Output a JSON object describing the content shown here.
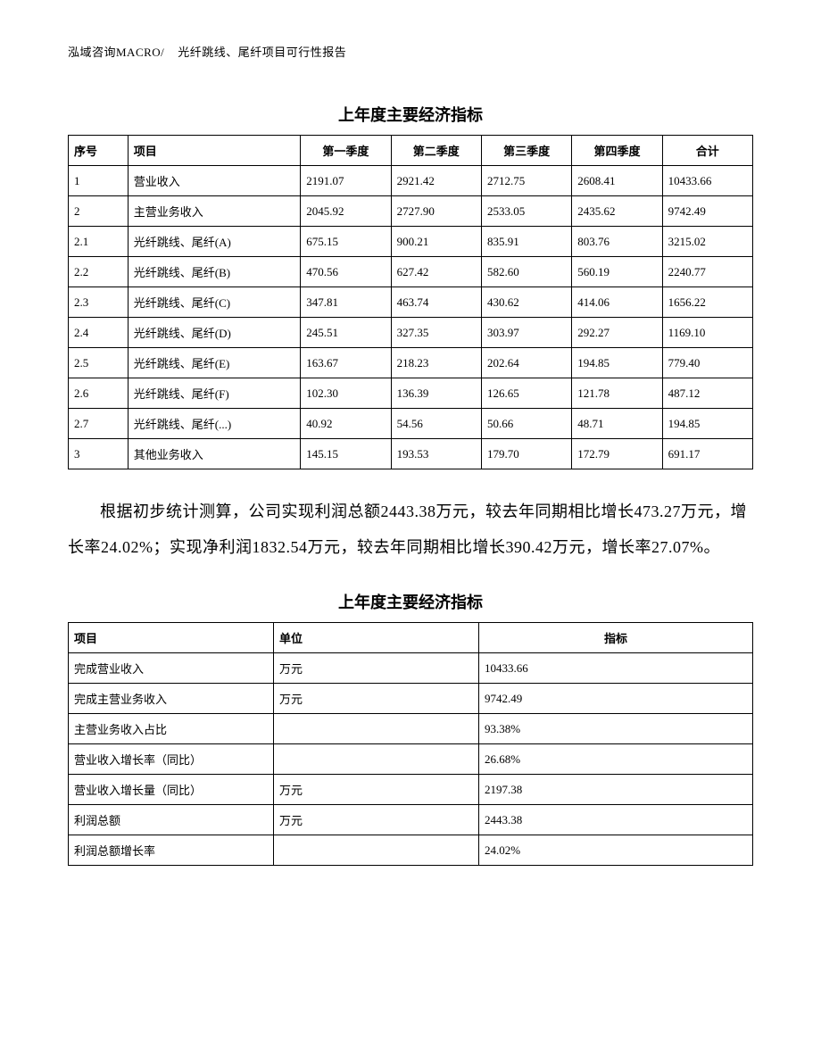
{
  "header": {
    "company": "泓域咨询MACRO/",
    "report_title": "光纤跳线、尾纤项目可行性报告"
  },
  "section1": {
    "title": "上年度主要经济指标",
    "columns": [
      "序号",
      "项目",
      "第一季度",
      "第二季度",
      "第三季度",
      "第四季度",
      "合计"
    ],
    "rows": [
      [
        "1",
        "营业收入",
        "2191.07",
        "2921.42",
        "2712.75",
        "2608.41",
        "10433.66"
      ],
      [
        "2",
        "主营业务收入",
        "2045.92",
        "2727.90",
        "2533.05",
        "2435.62",
        "9742.49"
      ],
      [
        "2.1",
        "光纤跳线、尾纤(A)",
        "675.15",
        "900.21",
        "835.91",
        "803.76",
        "3215.02"
      ],
      [
        "2.2",
        "光纤跳线、尾纤(B)",
        "470.56",
        "627.42",
        "582.60",
        "560.19",
        "2240.77"
      ],
      [
        "2.3",
        "光纤跳线、尾纤(C)",
        "347.81",
        "463.74",
        "430.62",
        "414.06",
        "1656.22"
      ],
      [
        "2.4",
        "光纤跳线、尾纤(D)",
        "245.51",
        "327.35",
        "303.97",
        "292.27",
        "1169.10"
      ],
      [
        "2.5",
        "光纤跳线、尾纤(E)",
        "163.67",
        "218.23",
        "202.64",
        "194.85",
        "779.40"
      ],
      [
        "2.6",
        "光纤跳线、尾纤(F)",
        "102.30",
        "136.39",
        "126.65",
        "121.78",
        "487.12"
      ],
      [
        "2.7",
        "光纤跳线、尾纤(...)",
        "40.92",
        "54.56",
        "50.66",
        "48.71",
        "194.85"
      ],
      [
        "3",
        "其他业务收入",
        "145.15",
        "193.53",
        "179.70",
        "172.79",
        "691.17"
      ]
    ]
  },
  "paragraph": "根据初步统计测算，公司实现利润总额2443.38万元，较去年同期相比增长473.27万元，增长率24.02%；实现净利润1832.54万元，较去年同期相比增长390.42万元，增长率27.07%。",
  "section2": {
    "title": "上年度主要经济指标",
    "columns": [
      "项目",
      "单位",
      "指标"
    ],
    "rows": [
      [
        "完成营业收入",
        "万元",
        "10433.66"
      ],
      [
        "完成主营业务收入",
        "万元",
        "9742.49"
      ],
      [
        "主营业务收入占比",
        "",
        "93.38%"
      ],
      [
        "营业收入增长率（同比）",
        "",
        "26.68%"
      ],
      [
        "营业收入增长量（同比）",
        "万元",
        "2197.38"
      ],
      [
        "利润总额",
        "万元",
        "2443.38"
      ],
      [
        "利润总额增长率",
        "",
        "24.02%"
      ]
    ]
  }
}
